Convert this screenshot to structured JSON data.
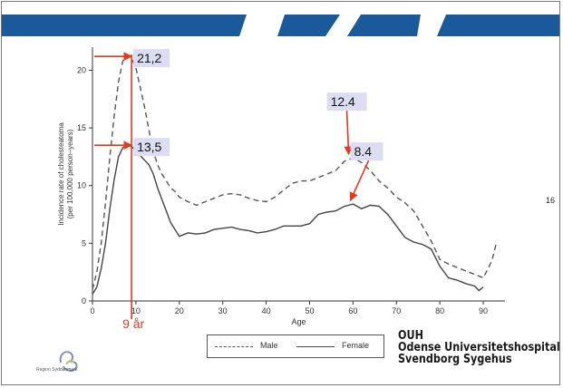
{
  "page_number": "16",
  "colors": {
    "header_blue": "#1b5a9a",
    "annotation_red": "#e33a1c",
    "callout_fill": "#dcdcf2",
    "male_line": "#555555",
    "female_line": "#444444"
  },
  "chart_data": {
    "type": "line",
    "xlabel": "Age",
    "ylabel_line1": "Incidence rate of cholesteatoma",
    "ylabel_line2": "(per 100,000 person–years)",
    "xlim": [
      0,
      95
    ],
    "ylim": [
      0,
      22
    ],
    "xticks": [
      0,
      10,
      20,
      30,
      40,
      50,
      60,
      70,
      80,
      90
    ],
    "yticks": [
      0,
      5,
      10,
      15,
      20
    ],
    "grid": false,
    "legend_position": "bottom",
    "series": [
      {
        "name": "Male",
        "style": "dashed",
        "x": [
          0,
          1,
          2,
          3,
          4,
          5,
          6,
          7,
          8,
          9,
          10,
          11,
          12,
          13,
          14,
          15,
          16,
          17,
          18,
          19,
          20,
          22,
          24,
          26,
          28,
          30,
          32,
          34,
          36,
          38,
          40,
          42,
          44,
          46,
          48,
          50,
          52,
          54,
          56,
          58,
          60,
          62,
          64,
          66,
          68,
          70,
          72,
          74,
          76,
          78,
          80,
          82,
          84,
          86,
          88,
          90,
          92,
          93
        ],
        "y": [
          1.0,
          2.5,
          5.0,
          8.5,
          12.5,
          16.0,
          19.0,
          20.8,
          21.3,
          21.0,
          20.2,
          18.5,
          16.8,
          14.8,
          13.0,
          11.8,
          11.0,
          10.4,
          9.8,
          9.5,
          9.0,
          8.6,
          8.3,
          8.6,
          8.9,
          9.2,
          9.3,
          9.2,
          8.9,
          8.7,
          8.6,
          9.0,
          9.6,
          10.2,
          10.4,
          10.4,
          10.7,
          11.0,
          11.3,
          12.1,
          12.4,
          12.0,
          11.3,
          10.4,
          9.8,
          9.0,
          8.5,
          7.8,
          6.5,
          5.2,
          3.6,
          3.2,
          2.9,
          2.6,
          2.3,
          2.0,
          3.5,
          5.0
        ]
      },
      {
        "name": "Female",
        "style": "solid",
        "x": [
          0,
          1,
          2,
          3,
          4,
          5,
          6,
          7,
          8,
          9,
          10,
          11,
          12,
          13,
          14,
          15,
          16,
          17,
          18,
          19,
          20,
          22,
          24,
          26,
          28,
          30,
          32,
          34,
          36,
          38,
          40,
          42,
          44,
          46,
          48,
          50,
          52,
          54,
          56,
          58,
          60,
          62,
          64,
          66,
          68,
          70,
          72,
          74,
          76,
          78,
          80,
          82,
          84,
          86,
          88,
          89,
          90
        ],
        "y": [
          0.6,
          1.2,
          2.8,
          5.0,
          8.0,
          10.5,
          12.5,
          13.3,
          13.5,
          13.4,
          13.0,
          12.6,
          12.2,
          11.8,
          11.0,
          9.8,
          8.8,
          7.8,
          6.8,
          6.2,
          5.6,
          5.9,
          5.8,
          5.9,
          6.2,
          6.3,
          6.4,
          6.2,
          6.1,
          5.9,
          6.0,
          6.2,
          6.5,
          6.5,
          6.5,
          6.7,
          7.5,
          7.7,
          7.8,
          8.2,
          8.4,
          8.0,
          8.3,
          8.2,
          7.5,
          6.5,
          5.5,
          5.1,
          4.9,
          4.5,
          3.0,
          2.0,
          1.8,
          1.5,
          1.3,
          0.9,
          1.2
        ]
      }
    ],
    "annotations": {
      "age_label": "9 år",
      "age_x": 9,
      "peak_male_label": "21,2",
      "peak_male_y": 21.2,
      "peak_female_label": "13,5",
      "peak_female_y": 13.5,
      "male_60_label": "12.4",
      "male_60_x": 59,
      "male_60_y": 12.4,
      "female_60_label": "8.4",
      "female_60_x": 59,
      "female_60_y": 8.4
    }
  },
  "legend": {
    "male_label": "Male",
    "female_label": "Female"
  },
  "organization": {
    "line1": "OUH",
    "line2": "Odense Universitetshospital",
    "line3": "Svendborg Sygehus"
  },
  "region_logo_text": "Region Syddanmark"
}
